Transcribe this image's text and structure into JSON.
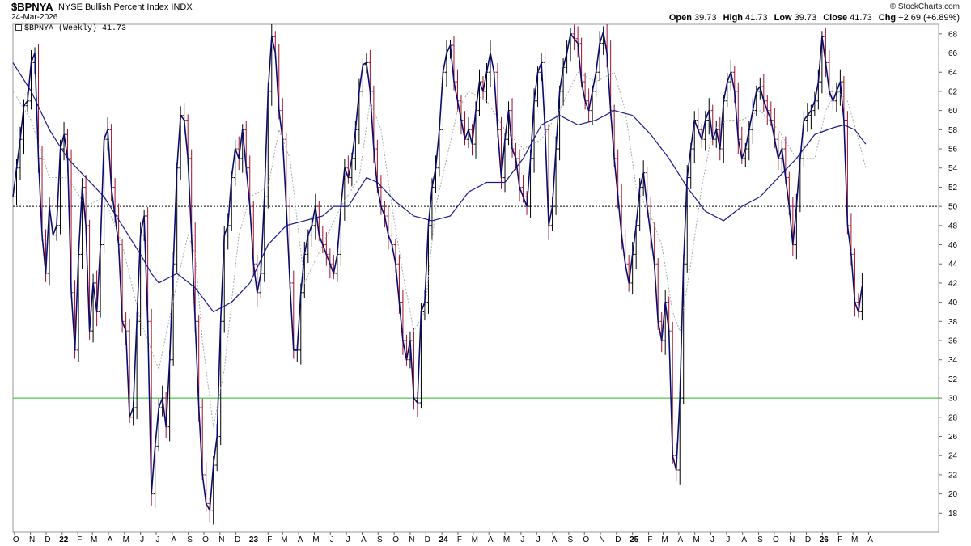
{
  "header": {
    "symbol": "$BPNYA",
    "description": "NYSE Bullish Percent Index",
    "exchange": "INDX",
    "date": "24-Mar-2026",
    "brand": "© StockCharts.com",
    "legend": "$BPNYA (Weekly) 41.73",
    "ohlc": [
      {
        "label": "Open",
        "value": "39.73"
      },
      {
        "label": "High",
        "value": "41.73"
      },
      {
        "label": "Low",
        "value": "39.73"
      },
      {
        "label": "Close",
        "value": "41.73"
      },
      {
        "label": "Chg",
        "value": "+2.69 (+6.89%)"
      }
    ]
  },
  "colors": {
    "price": "#0b0b6e",
    "up_bar": "#000000",
    "down_bar": "#a0102a",
    "ma_long": "#1a1a8c",
    "ma_short": "#a8a8a8",
    "level_30": "#22bb22",
    "level_50": "#000000"
  },
  "chart_data": {
    "type": "line",
    "title": "NYSE Bullish Percent Index",
    "ylim": [
      16,
      69
    ],
    "yticks": [
      18,
      20,
      22,
      24,
      26,
      28,
      30,
      32,
      34,
      36,
      38,
      40,
      42,
      44,
      46,
      48,
      50,
      52,
      54,
      56,
      58,
      60,
      62,
      64,
      66,
      68
    ],
    "xlim": [
      0,
      254
    ],
    "xticks": [
      {
        "label": "O",
        "x": 0.4
      },
      {
        "label": "N",
        "x": 4.8
      },
      {
        "label": "D",
        "x": 9.1
      },
      {
        "label": "22",
        "x": 13.5
      },
      {
        "label": "F",
        "x": 17.8
      },
      {
        "label": "M",
        "x": 21.8
      },
      {
        "label": "A",
        "x": 26.2
      },
      {
        "label": "M",
        "x": 30.6
      },
      {
        "label": "J",
        "x": 35.0
      },
      {
        "label": "J",
        "x": 39.3
      },
      {
        "label": "A",
        "x": 43.7
      },
      {
        "label": "S",
        "x": 48.1
      },
      {
        "label": "O",
        "x": 52.4
      },
      {
        "label": "N",
        "x": 56.8
      },
      {
        "label": "D",
        "x": 61.2
      },
      {
        "label": "23",
        "x": 65.6
      },
      {
        "label": "F",
        "x": 70.0
      },
      {
        "label": "M",
        "x": 74.0
      },
      {
        "label": "A",
        "x": 78.4
      },
      {
        "label": "M",
        "x": 82.7
      },
      {
        "label": "J",
        "x": 87.1
      },
      {
        "label": "J",
        "x": 91.5
      },
      {
        "label": "A",
        "x": 95.8
      },
      {
        "label": "S",
        "x": 100.2
      },
      {
        "label": "O",
        "x": 104.6
      },
      {
        "label": "N",
        "x": 109.0
      },
      {
        "label": "D",
        "x": 113.3
      },
      {
        "label": "24",
        "x": 117.7
      },
      {
        "label": "F",
        "x": 122.1
      },
      {
        "label": "M",
        "x": 126.3
      },
      {
        "label": "A",
        "x": 130.6
      },
      {
        "label": "M",
        "x": 135.0
      },
      {
        "label": "J",
        "x": 139.4
      },
      {
        "label": "J",
        "x": 143.7
      },
      {
        "label": "A",
        "x": 148.1
      },
      {
        "label": "S",
        "x": 152.5
      },
      {
        "label": "O",
        "x": 156.8
      },
      {
        "label": "N",
        "x": 161.2
      },
      {
        "label": "D",
        "x": 165.6
      },
      {
        "label": "25",
        "x": 170.0
      },
      {
        "label": "F",
        "x": 174.4
      },
      {
        "label": "M",
        "x": 178.4
      },
      {
        "label": "A",
        "x": 182.7
      },
      {
        "label": "M",
        "x": 187.1
      },
      {
        "label": "J",
        "x": 191.5
      },
      {
        "label": "J",
        "x": 195.8
      },
      {
        "label": "A",
        "x": 200.2
      },
      {
        "label": "S",
        "x": 204.6
      },
      {
        "label": "O",
        "x": 208.9
      },
      {
        "label": "N",
        "x": 213.3
      },
      {
        "label": "D",
        "x": 217.7
      },
      {
        "label": "26",
        "x": 222.1
      },
      {
        "label": "F",
        "x": 226.5
      },
      {
        "label": "M",
        "x": 230.5
      },
      {
        "label": "A",
        "x": 234.8
      }
    ],
    "reference_lines": [
      {
        "value": 50,
        "style": "dotted",
        "color": "#000000"
      },
      {
        "value": 30,
        "style": "solid",
        "color": "#22bb22"
      }
    ],
    "keypoints": [
      [
        0,
        51
      ],
      [
        1,
        54
      ],
      [
        2,
        57
      ],
      [
        3,
        60.5
      ],
      [
        4,
        61
      ],
      [
        5,
        65
      ],
      [
        6,
        66
      ],
      [
        7,
        55
      ],
      [
        8,
        47
      ],
      [
        9,
        43
      ],
      [
        10,
        50
      ],
      [
        11,
        47
      ],
      [
        12,
        48
      ],
      [
        13,
        56
      ],
      [
        14,
        57.5
      ],
      [
        15,
        55
      ],
      [
        16,
        41
      ],
      [
        17,
        35
      ],
      [
        18,
        45
      ],
      [
        19,
        52
      ],
      [
        20,
        48
      ],
      [
        21,
        37
      ],
      [
        22,
        42
      ],
      [
        23,
        39
      ],
      [
        24,
        46
      ],
      [
        25,
        57
      ],
      [
        26,
        58
      ],
      [
        27,
        52
      ],
      [
        28,
        49
      ],
      [
        29,
        46
      ],
      [
        30,
        38
      ],
      [
        31,
        37
      ],
      [
        32,
        28
      ],
      [
        33,
        29
      ],
      [
        34,
        38
      ],
      [
        35,
        47
      ],
      [
        36,
        49
      ],
      [
        37,
        38
      ],
      [
        38,
        20
      ],
      [
        39,
        25
      ],
      [
        40,
        29
      ],
      [
        41,
        30
      ],
      [
        42,
        27
      ],
      [
        43,
        34
      ],
      [
        44,
        44
      ],
      [
        45,
        54
      ],
      [
        46,
        59.5
      ],
      [
        47,
        59
      ],
      [
        48,
        55
      ],
      [
        49,
        47
      ],
      [
        50,
        38
      ],
      [
        51,
        29
      ],
      [
        52,
        22
      ],
      [
        53,
        19
      ],
      [
        54,
        18.3
      ],
      [
        55,
        23
      ],
      [
        56,
        26
      ],
      [
        57,
        38
      ],
      [
        58,
        47
      ],
      [
        59,
        48
      ],
      [
        60,
        53
      ],
      [
        61,
        56
      ],
      [
        62,
        55
      ],
      [
        63,
        58
      ],
      [
        64,
        54
      ],
      [
        65,
        50
      ],
      [
        66,
        44
      ],
      [
        67,
        41
      ],
      [
        68,
        43
      ],
      [
        69,
        51
      ],
      [
        70,
        62
      ],
      [
        71,
        67.7
      ],
      [
        72,
        66
      ],
      [
        73,
        60
      ],
      [
        74,
        57
      ],
      [
        75,
        50
      ],
      [
        76,
        42
      ],
      [
        77,
        35
      ],
      [
        78,
        35
      ],
      [
        79,
        41
      ],
      [
        80,
        45
      ],
      [
        81,
        47
      ],
      [
        82,
        48
      ],
      [
        83,
        50
      ],
      [
        84,
        47
      ],
      [
        85,
        46
      ],
      [
        86,
        45
      ],
      [
        87,
        44
      ],
      [
        88,
        43
      ],
      [
        89,
        45
      ],
      [
        90,
        50
      ],
      [
        91,
        54
      ],
      [
        92,
        53
      ],
      [
        93,
        55
      ],
      [
        94,
        58
      ],
      [
        95,
        62
      ],
      [
        96,
        64.8
      ],
      [
        97,
        65
      ],
      [
        98,
        62
      ],
      [
        99,
        56
      ],
      [
        100,
        52
      ],
      [
        101,
        50
      ],
      [
        102,
        49
      ],
      [
        103,
        47
      ],
      [
        104,
        46
      ],
      [
        105,
        44
      ],
      [
        106,
        40
      ],
      [
        107,
        36
      ],
      [
        108,
        34
      ],
      [
        109,
        36
      ],
      [
        110,
        30
      ],
      [
        111,
        29.5
      ],
      [
        112,
        39
      ],
      [
        113,
        40
      ],
      [
        114,
        48
      ],
      [
        115,
        52
      ],
      [
        116,
        54
      ],
      [
        117,
        58
      ],
      [
        118,
        64
      ],
      [
        119,
        66
      ],
      [
        120,
        66.8
      ],
      [
        121,
        63
      ],
      [
        122,
        61
      ],
      [
        123,
        59
      ],
      [
        124,
        57
      ],
      [
        125,
        58
      ],
      [
        126,
        56.5
      ],
      [
        127,
        60
      ],
      [
        128,
        63
      ],
      [
        129,
        62
      ],
      [
        130,
        64
      ],
      [
        131,
        66
      ],
      [
        132,
        64
      ],
      [
        133,
        58
      ],
      [
        134,
        53
      ],
      [
        135,
        57
      ],
      [
        136,
        60
      ],
      [
        137,
        56
      ],
      [
        138,
        55
      ],
      [
        139,
        52
      ],
      [
        140,
        51
      ],
      [
        141,
        50
      ],
      [
        142,
        55
      ],
      [
        143,
        61
      ],
      [
        144,
        64
      ],
      [
        145,
        65
      ],
      [
        146,
        58
      ],
      [
        147,
        48
      ],
      [
        148,
        50
      ],
      [
        149,
        56
      ],
      [
        150,
        62
      ],
      [
        151,
        64.5
      ],
      [
        152,
        66
      ],
      [
        153,
        68
      ],
      [
        154,
        67.5
      ],
      [
        155,
        67
      ],
      [
        156,
        63
      ],
      [
        157,
        61
      ],
      [
        158,
        60
      ],
      [
        159,
        62
      ],
      [
        160,
        64
      ],
      [
        161,
        67
      ],
      [
        162,
        68.2
      ],
      [
        163,
        66
      ],
      [
        164,
        60
      ],
      [
        165,
        55
      ],
      [
        166,
        51
      ],
      [
        167,
        47
      ],
      [
        168,
        44
      ],
      [
        169,
        42
      ],
      [
        170,
        45
      ],
      [
        171,
        48
      ],
      [
        172,
        52
      ],
      [
        173,
        53.5
      ],
      [
        174,
        50
      ],
      [
        175,
        47
      ],
      [
        176,
        44
      ],
      [
        177,
        38
      ],
      [
        178,
        36
      ],
      [
        179,
        40
      ],
      [
        180,
        37
      ],
      [
        181,
        24
      ],
      [
        182,
        22.5
      ],
      [
        183,
        30
      ],
      [
        184,
        44
      ],
      [
        185,
        53
      ],
      [
        186,
        56
      ],
      [
        187,
        59
      ],
      [
        188,
        58
      ],
      [
        189,
        57
      ],
      [
        190,
        59
      ],
      [
        191,
        60
      ],
      [
        192,
        57
      ],
      [
        193,
        58
      ],
      [
        194,
        56
      ],
      [
        195,
        61
      ],
      [
        196,
        63
      ],
      [
        197,
        64
      ],
      [
        198,
        62
      ],
      [
        199,
        57
      ],
      [
        200,
        55
      ],
      [
        201,
        56
      ],
      [
        202,
        58
      ],
      [
        203,
        60
      ],
      [
        204,
        62
      ],
      [
        205,
        62.5
      ],
      [
        206,
        61
      ],
      [
        207,
        60
      ],
      [
        208,
        59
      ],
      [
        209,
        57
      ],
      [
        210,
        55
      ],
      [
        211,
        56
      ],
      [
        212,
        53
      ],
      [
        213,
        50
      ],
      [
        214,
        46
      ],
      [
        215,
        50
      ],
      [
        216,
        55
      ],
      [
        217,
        59
      ],
      [
        218,
        59.5
      ],
      [
        219,
        60
      ],
      [
        220,
        61
      ],
      [
        221,
        63
      ],
      [
        222,
        67.7
      ],
      [
        223,
        65
      ],
      [
        224,
        62
      ],
      [
        225,
        61
      ],
      [
        226,
        62
      ],
      [
        227,
        63
      ],
      [
        228,
        59
      ],
      [
        229,
        48
      ],
      [
        230,
        45
      ],
      [
        231,
        40
      ],
      [
        232,
        39
      ],
      [
        233,
        41.7
      ]
    ],
    "moving_average_long": [
      [
        0,
        65
      ],
      [
        5,
        62
      ],
      [
        10,
        58
      ],
      [
        15,
        55
      ],
      [
        20,
        53
      ],
      [
        25,
        51
      ],
      [
        30,
        48
      ],
      [
        35,
        45
      ],
      [
        38,
        43
      ],
      [
        40,
        42
      ],
      [
        45,
        43
      ],
      [
        50,
        41.5
      ],
      [
        55,
        39
      ],
      [
        60,
        40
      ],
      [
        65,
        42
      ],
      [
        70,
        46
      ],
      [
        75,
        48
      ],
      [
        80,
        48.5
      ],
      [
        85,
        49
      ],
      [
        88,
        50
      ],
      [
        92,
        50
      ],
      [
        97,
        53
      ],
      [
        100,
        52.5
      ],
      [
        105,
        50.5
      ],
      [
        110,
        49
      ],
      [
        115,
        48.5
      ],
      [
        120,
        49
      ],
      [
        125,
        51.5
      ],
      [
        130,
        52.5
      ],
      [
        135,
        52.5
      ],
      [
        140,
        55
      ],
      [
        145,
        58.5
      ],
      [
        150,
        59.5
      ],
      [
        155,
        58.5
      ],
      [
        160,
        59
      ],
      [
        165,
        60
      ],
      [
        170,
        59.5
      ],
      [
        175,
        57.5
      ],
      [
        180,
        55
      ],
      [
        185,
        52
      ],
      [
        190,
        49.5
      ],
      [
        195,
        48.5
      ],
      [
        200,
        50
      ],
      [
        205,
        51
      ],
      [
        210,
        53
      ],
      [
        215,
        55
      ],
      [
        220,
        57.5
      ],
      [
        225,
        58.2
      ],
      [
        228,
        58.5
      ],
      [
        231,
        58
      ],
      [
        234,
        56.5
      ]
    ],
    "moving_average_short": [
      [
        0,
        62
      ],
      [
        5,
        59
      ],
      [
        10,
        53
      ],
      [
        15,
        53
      ],
      [
        20,
        50
      ],
      [
        25,
        51
      ],
      [
        30,
        46
      ],
      [
        35,
        38
      ],
      [
        40,
        33
      ],
      [
        45,
        42
      ],
      [
        48,
        47
      ],
      [
        50,
        45
      ],
      [
        52,
        36
      ],
      [
        55,
        27
      ],
      [
        58,
        33
      ],
      [
        62,
        47
      ],
      [
        65,
        51
      ],
      [
        70,
        52
      ],
      [
        73,
        58
      ],
      [
        76,
        55
      ],
      [
        80,
        42
      ],
      [
        85,
        46
      ],
      [
        90,
        50
      ],
      [
        95,
        53
      ],
      [
        98,
        61
      ],
      [
        101,
        58
      ],
      [
        104,
        50
      ],
      [
        107,
        43
      ],
      [
        110,
        37
      ],
      [
        113,
        39
      ],
      [
        116,
        50
      ],
      [
        119,
        55
      ],
      [
        122,
        60
      ],
      [
        125,
        62
      ],
      [
        130,
        61
      ],
      [
        135,
        58
      ],
      [
        140,
        56
      ],
      [
        145,
        57
      ],
      [
        150,
        60
      ],
      [
        155,
        64
      ],
      [
        160,
        63
      ],
      [
        165,
        64
      ],
      [
        168,
        60
      ],
      [
        171,
        52
      ],
      [
        175,
        49
      ],
      [
        178,
        46
      ],
      [
        181,
        39
      ],
      [
        183,
        37
      ],
      [
        186,
        44
      ],
      [
        189,
        52
      ],
      [
        192,
        58
      ],
      [
        196,
        59
      ],
      [
        200,
        59
      ],
      [
        205,
        60
      ],
      [
        210,
        58
      ],
      [
        215,
        55
      ],
      [
        220,
        55
      ],
      [
        223,
        60
      ],
      [
        226,
        62
      ],
      [
        229,
        61
      ],
      [
        232,
        57
      ],
      [
        234,
        54
      ]
    ]
  }
}
